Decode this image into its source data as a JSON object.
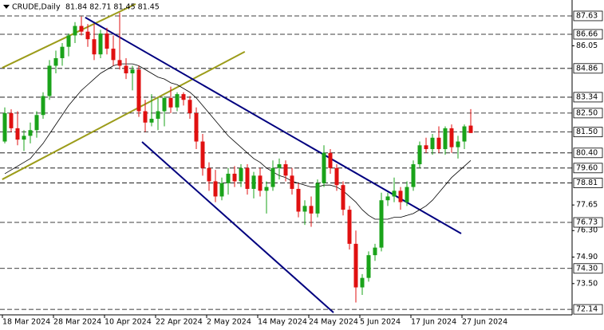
{
  "header": {
    "symbol": "CRUDE,Daily",
    "ohlc_text": "81.84 82.71 81.45 81.45"
  },
  "chart_data": {
    "type": "candlestick",
    "categories": [
      "18 Mar 2024",
      null,
      null,
      null,
      null,
      null,
      null,
      null,
      "28 Mar 2024",
      null,
      null,
      null,
      null,
      null,
      null,
      null,
      "10 Apr 2024",
      null,
      null,
      null,
      null,
      null,
      null,
      null,
      "22 Apr 2024",
      null,
      null,
      null,
      null,
      null,
      null,
      null,
      "2 May 2024",
      null,
      null,
      null,
      null,
      null,
      null,
      null,
      "14 May 2024",
      null,
      null,
      null,
      null,
      null,
      null,
      null,
      "24 May 2024",
      null,
      null,
      null,
      null,
      null,
      null,
      null,
      "5 Jun 2024",
      null,
      null,
      null,
      null,
      null,
      null,
      null,
      "17 Jun 2024",
      null,
      null,
      null,
      null,
      null,
      null,
      null,
      "27 Jun 2024",
      null
    ],
    "open": [
      81.0,
      82.5,
      81.7,
      81.1,
      81.3,
      81.6,
      82.4,
      83.4,
      85.0,
      85.4,
      86.0,
      86.6,
      87.1,
      86.8,
      86.4,
      85.6,
      86.7,
      85.9,
      85.3,
      85.0,
      84.6,
      84.8,
      82.6,
      82.0,
      82.2,
      82.6,
      83.3,
      82.8,
      83.5,
      83.2,
      82.5,
      81.0,
      79.6,
      78.9,
      78.1,
      78.8,
      79.3,
      78.9,
      79.6,
      78.5,
      79.2,
      78.4,
      78.6,
      79.6,
      79.8,
      79.2,
      78.5,
      77.3,
      77.6,
      77.2,
      78.8,
      80.4,
      79.6,
      78.7,
      77.4,
      75.6,
      73.3,
      73.8,
      75.0,
      75.4,
      77.9,
      78.1,
      78.4,
      77.8,
      78.6,
      79.8,
      80.8,
      80.6,
      81.2,
      80.6,
      81.7,
      80.7,
      81.0,
      81.84
    ],
    "high": [
      82.8,
      82.7,
      82.6,
      81.6,
      82.0,
      82.6,
      83.6,
      85.3,
      85.8,
      86.2,
      86.7,
      87.3,
      87.6,
      87.2,
      87.2,
      86.9,
      87.0,
      86.6,
      87.8,
      85.4,
      85.0,
      85.0,
      83.2,
      83.5,
      83.3,
      83.4,
      83.9,
      83.6,
      83.6,
      83.4,
      82.8,
      81.4,
      79.9,
      79.5,
      79.1,
      79.6,
      79.7,
      79.8,
      79.8,
      79.4,
      79.6,
      78.9,
      80.0,
      80.1,
      80.0,
      79.6,
      78.8,
      77.9,
      78.1,
      79.0,
      80.8,
      80.6,
      79.8,
      78.9,
      77.6,
      76.3,
      74.0,
      75.2,
      75.6,
      78.3,
      78.3,
      79.1,
      78.6,
      78.9,
      80.0,
      81.0,
      81.2,
      81.4,
      81.8,
      81.8,
      81.9,
      81.3,
      81.9,
      82.71
    ],
    "low": [
      80.9,
      81.5,
      80.8,
      80.5,
      80.9,
      81.2,
      82.2,
      83.2,
      84.6,
      85.0,
      85.5,
      86.2,
      86.6,
      86.0,
      85.3,
      85.4,
      85.6,
      85.0,
      84.8,
      84.3,
      83.7,
      82.3,
      81.5,
      81.8,
      81.6,
      81.8,
      82.5,
      82.6,
      82.9,
      82.2,
      80.6,
      79.2,
      78.4,
      77.8,
      77.9,
      78.2,
      78.6,
      78.6,
      78.2,
      78.0,
      78.1,
      77.2,
      78.4,
      79.0,
      78.9,
      78.2,
      77.0,
      76.6,
      76.5,
      77.0,
      78.6,
      79.3,
      78.4,
      77.1,
      75.3,
      72.5,
      72.9,
      73.6,
      74.7,
      75.2,
      77.6,
      77.8,
      77.4,
      77.6,
      78.4,
      79.6,
      80.4,
      80.3,
      80.4,
      80.3,
      80.4,
      80.1,
      80.6,
      81.45
    ],
    "close": [
      82.5,
      81.7,
      81.1,
      81.3,
      81.6,
      82.4,
      83.4,
      85.0,
      85.4,
      86.0,
      86.6,
      87.1,
      86.8,
      86.4,
      85.6,
      86.7,
      85.9,
      85.3,
      85.0,
      84.6,
      84.8,
      82.6,
      82.0,
      82.2,
      82.6,
      83.3,
      82.8,
      83.5,
      83.2,
      82.5,
      81.0,
      79.6,
      78.9,
      78.1,
      78.8,
      79.3,
      78.9,
      79.6,
      78.5,
      79.2,
      78.4,
      78.6,
      79.6,
      79.8,
      79.2,
      78.5,
      77.3,
      77.6,
      77.2,
      78.8,
      80.4,
      79.6,
      78.7,
      77.4,
      75.6,
      73.3,
      73.8,
      75.0,
      75.4,
      77.9,
      78.1,
      78.4,
      77.8,
      78.6,
      79.8,
      80.8,
      80.6,
      81.2,
      80.6,
      81.7,
      80.7,
      81.0,
      81.8,
      81.45
    ],
    "up_color": "#1aa31a",
    "down_color": "#e01010",
    "ma": {
      "color": "#000000",
      "values": [
        79.3,
        79.5,
        79.7,
        79.9,
        80.1,
        80.5,
        80.9,
        81.4,
        81.9,
        82.4,
        82.9,
        83.3,
        83.7,
        84.0,
        84.3,
        84.6,
        84.8,
        85.0,
        85.1,
        85.1,
        85.1,
        85.0,
        84.8,
        84.6,
        84.4,
        84.3,
        84.1,
        84.0,
        83.8,
        83.6,
        83.3,
        82.9,
        82.5,
        82.1,
        81.7,
        81.3,
        81.0,
        80.7,
        80.4,
        80.1,
        79.9,
        79.6,
        79.4,
        79.2,
        79.1,
        78.9,
        78.8,
        78.7,
        78.6,
        78.6,
        78.7,
        78.7,
        78.6,
        78.4,
        78.1,
        77.8,
        77.4,
        77.1,
        76.9,
        76.9,
        76.9,
        77.0,
        77.0,
        77.1,
        77.2,
        77.4,
        77.6,
        77.9,
        78.3,
        78.7,
        79.1,
        79.4,
        79.7,
        80.0
      ]
    },
    "trendlines": [
      {
        "color": "#9c9c1a",
        "points": [
          [
            -0.4,
            84.89
          ],
          [
            20.5,
            88.26
          ]
        ]
      },
      {
        "color": "#9c9c1a",
        "points": [
          [
            -0.4,
            79.0
          ],
          [
            37.6,
            85.74
          ]
        ]
      },
      {
        "color": "#00007f",
        "points": [
          [
            12.6,
            87.55
          ],
          [
            71.5,
            76.14
          ]
        ]
      },
      {
        "color": "#00007f",
        "points": [
          [
            21.5,
            80.98
          ],
          [
            51.5,
            71.97
          ]
        ]
      }
    ],
    "levels": [
      87.63,
      86.66,
      84.86,
      83.34,
      {
        "value": 82.5,
        "label": "82.50"
      },
      {
        "value": 81.5,
        "label": "81.50"
      },
      {
        "value": 80.4,
        "label": "80.40"
      },
      {
        "value": 79.6,
        "label": "79.60"
      },
      78.81,
      76.73,
      {
        "value": 74.3,
        "label": "74.30"
      },
      72.14
    ],
    "ylim": [
      71.85,
      88.47
    ],
    "yticks": [
      86.05,
      77.65,
      {
        "value": 76.3,
        "label": "76.30"
      },
      {
        "value": 74.9,
        "label": "74.90"
      },
      {
        "value": 73.5,
        "label": "73.50"
      }
    ]
  }
}
